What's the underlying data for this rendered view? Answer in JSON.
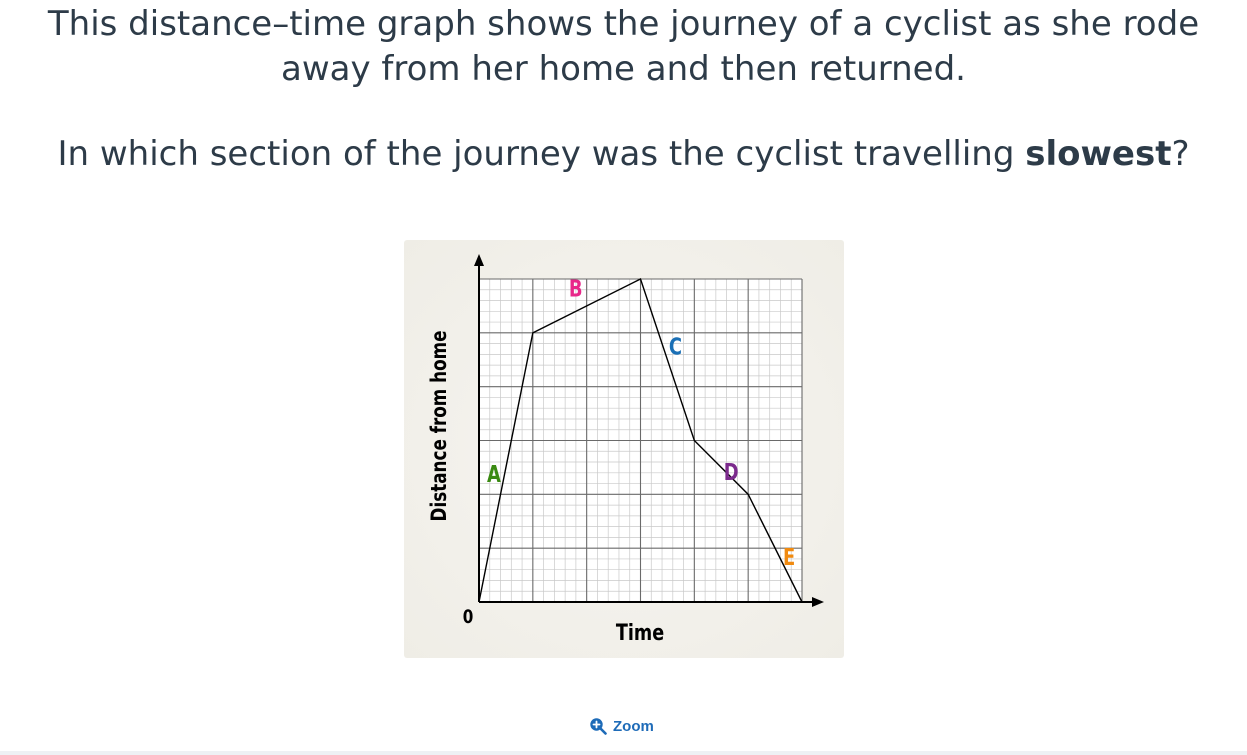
{
  "question": {
    "line1": "This distance–time graph shows the journey of a cyclist as she rode away from her home and then returned.",
    "line2_before": "In which section of the journey was the cyclist travelling ",
    "line2_bold": "slowest",
    "line2_after": "?"
  },
  "chart_data": {
    "type": "line",
    "xlabel": "Time",
    "ylabel": "Distance from home",
    "origin_label": "0",
    "grid": true,
    "x": [
      0,
      1,
      3,
      4,
      5,
      6
    ],
    "y": [
      0,
      5,
      6,
      3,
      2,
      0
    ],
    "xlim": [
      0,
      6
    ],
    "ylim": [
      0,
      6
    ],
    "sections": [
      {
        "label": "A",
        "color": "#3a8a12",
        "from": [
          0,
          0
        ],
        "to": [
          1,
          5
        ]
      },
      {
        "label": "B",
        "color": "#e8288a",
        "from": [
          1,
          5
        ],
        "to": [
          3,
          6
        ]
      },
      {
        "label": "C",
        "color": "#1a6fb5",
        "from": [
          3,
          6
        ],
        "to": [
          4,
          3
        ]
      },
      {
        "label": "D",
        "color": "#7b2a8c",
        "from": [
          4,
          3
        ],
        "to": [
          5,
          2
        ]
      },
      {
        "label": "E",
        "color": "#f08a10",
        "from": [
          5,
          2
        ],
        "to": [
          6,
          0
        ]
      }
    ]
  },
  "zoom": {
    "label": "Zoom",
    "icon": "zoom-in-icon",
    "color": "#1e6bb8"
  }
}
